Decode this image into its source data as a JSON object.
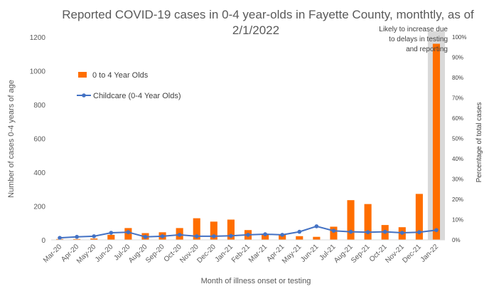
{
  "chart_data": {
    "type": "bar",
    "title_line1": "Reported COVID-19 cases in 0-4 year-olds in Fayette County, monthtly, as of",
    "title_line2": "2/1/2022",
    "xlabel": "Month of illness onset or testing",
    "ylabel": "Number of cases 0-4 years of age",
    "y2label": "Percentage of total cases",
    "categories": [
      "Mar-20",
      "Apr-20",
      "May-20",
      "Jun-20",
      "Jul-20",
      "Aug-20",
      "Sep-20",
      "Oct-20",
      "Nov-20",
      "Dec-20",
      "Jan-21",
      "Feb-21",
      "Mar-21",
      "Apr-21",
      "May-21",
      "Jun-21",
      "Jul-21",
      "Aug-21",
      "Sep-21",
      "Oct-21",
      "Nov-21",
      "Dec-21",
      "Jan-22"
    ],
    "ylim": [
      0,
      1200
    ],
    "y_ticks": [
      "0",
      "200",
      "400",
      "600",
      "800",
      "1000",
      "1200"
    ],
    "y2lim": [
      0,
      100
    ],
    "y2_ticks": [
      "0%",
      "10%",
      "20%",
      "30%",
      "40%",
      "50%",
      "60%",
      "70%",
      "80%",
      "90%",
      "100%"
    ],
    "series": [
      {
        "name": "0 to 4 Year Olds",
        "kind": "bar",
        "axis": "left",
        "color": "#FF6E00",
        "values": [
          5,
          5,
          8,
          30,
          70,
          40,
          45,
          70,
          128,
          108,
          120,
          58,
          30,
          30,
          22,
          18,
          78,
          235,
          212,
          88,
          75,
          272,
          1160
        ]
      },
      {
        "name": "Childcare (0-4 Year Olds)",
        "kind": "line",
        "axis": "right",
        "color": "#4472C4",
        "values": [
          1.0,
          1.5,
          1.8,
          3.5,
          3.8,
          1.5,
          1.8,
          2.5,
          1.8,
          1.8,
          2.0,
          2.5,
          2.8,
          2.5,
          4.0,
          6.7,
          4.5,
          4.0,
          3.8,
          4.0,
          3.5,
          3.8,
          4.8
        ]
      }
    ],
    "highlight_annotation": [
      "Likely to increase due",
      "to delays in testing",
      "and reporting"
    ],
    "highlight_color": "#D9D9D9",
    "grid": false,
    "legend_position": "upper-left inside plot"
  }
}
